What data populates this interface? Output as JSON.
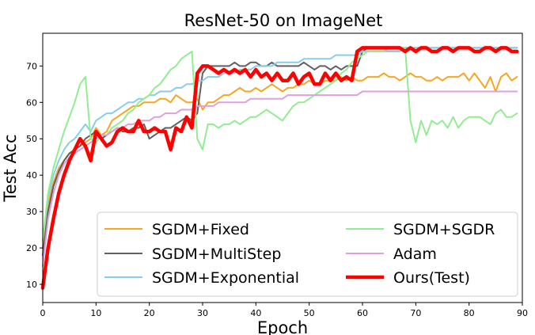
{
  "chart_data": {
    "type": "line",
    "title": "ResNet-50 on ImageNet",
    "xlabel": "Epoch",
    "ylabel": "Test Acc",
    "xlim": [
      0,
      90
    ],
    "ylim": [
      5,
      79
    ],
    "xticks": [
      0,
      10,
      20,
      30,
      40,
      50,
      60,
      70,
      80,
      90
    ],
    "yticks": [
      10,
      20,
      30,
      40,
      50,
      60,
      70
    ],
    "grid": false,
    "legend_position": "lower-right",
    "legend_columns": 2,
    "series": [
      {
        "name": "SGDM+Fixed",
        "color": "#f5a623",
        "line_width": 2,
        "x": [
          0,
          1,
          2,
          3,
          4,
          5,
          6,
          7,
          8,
          9,
          10,
          11,
          12,
          13,
          14,
          15,
          16,
          17,
          18,
          19,
          20,
          21,
          22,
          23,
          24,
          25,
          26,
          27,
          28,
          29,
          30,
          31,
          32,
          33,
          34,
          35,
          36,
          37,
          38,
          39,
          40,
          41,
          42,
          43,
          44,
          45,
          46,
          47,
          48,
          49,
          50,
          51,
          52,
          53,
          54,
          55,
          56,
          57,
          58,
          59,
          60,
          61,
          62,
          63,
          64,
          65,
          66,
          67,
          68,
          69,
          70,
          71,
          72,
          73,
          74,
          75,
          76,
          77,
          78,
          79,
          80,
          81,
          82,
          83,
          84,
          85,
          86,
          87,
          88,
          89
        ],
        "values": [
          20,
          32,
          38,
          42,
          44,
          46,
          47,
          48,
          49,
          50,
          53,
          51,
          52,
          55,
          56,
          57,
          58,
          59,
          59,
          60,
          60,
          60,
          61,
          61,
          60,
          62,
          61,
          60,
          60,
          61,
          58,
          60,
          60,
          61,
          62,
          62,
          63,
          64,
          63,
          63,
          64,
          63,
          64,
          65,
          64,
          63,
          64,
          64,
          65,
          65,
          66,
          65,
          65,
          66,
          66,
          66,
          67,
          66,
          67,
          66,
          66,
          67,
          67,
          67,
          68,
          67,
          67,
          66,
          67,
          68,
          67,
          67,
          66,
          66,
          67,
          66,
          67,
          67,
          67,
          68,
          66,
          68,
          66,
          64,
          67,
          63,
          67,
          68,
          66,
          67
        ]
      },
      {
        "name": "SGDM+MultiStep",
        "color": "#606060",
        "line_width": 2,
        "x": [
          0,
          1,
          2,
          3,
          4,
          5,
          6,
          7,
          8,
          9,
          10,
          11,
          12,
          13,
          14,
          15,
          16,
          17,
          18,
          19,
          20,
          21,
          22,
          23,
          24,
          25,
          26,
          27,
          28,
          29,
          30,
          31,
          32,
          33,
          34,
          35,
          36,
          37,
          38,
          39,
          40,
          41,
          42,
          43,
          44,
          45,
          46,
          47,
          48,
          49,
          50,
          51,
          52,
          53,
          54,
          55,
          56,
          57,
          58,
          59,
          60,
          61,
          62,
          63,
          64,
          65,
          66,
          67,
          68,
          69,
          70,
          71,
          72,
          73,
          74,
          75,
          76,
          77,
          78,
          79,
          80,
          81,
          82,
          83,
          84,
          85,
          86,
          87,
          88,
          89
        ],
        "values": [
          18,
          30,
          37,
          41,
          44,
          46,
          47,
          48,
          50,
          51,
          52,
          50,
          51,
          52,
          53,
          52,
          52,
          53,
          53,
          54,
          50,
          51,
          52,
          53,
          53,
          54,
          55,
          56,
          55,
          57,
          68,
          70,
          70,
          70,
          70,
          70,
          71,
          70,
          70,
          71,
          71,
          70,
          70,
          71,
          70,
          70,
          70,
          70,
          70,
          71,
          70,
          69,
          70,
          70,
          69,
          70,
          69,
          70,
          70,
          70,
          74,
          75,
          75,
          75,
          75,
          75,
          75,
          75,
          75,
          75,
          75,
          75,
          75,
          75,
          75,
          75,
          75,
          75,
          75,
          75,
          75,
          75,
          75,
          75,
          75,
          75,
          75,
          75,
          75,
          75
        ]
      },
      {
        "name": "SGDM+Exponential",
        "color": "#87ceeb",
        "line_width": 2,
        "x": [
          0,
          1,
          2,
          3,
          4,
          5,
          6,
          7,
          8,
          9,
          10,
          11,
          12,
          13,
          14,
          15,
          16,
          17,
          18,
          19,
          20,
          21,
          22,
          23,
          24,
          25,
          26,
          27,
          28,
          29,
          30,
          31,
          32,
          33,
          34,
          35,
          36,
          37,
          38,
          39,
          40,
          41,
          42,
          43,
          44,
          45,
          46,
          47,
          48,
          49,
          50,
          51,
          52,
          53,
          54,
          55,
          56,
          57,
          58,
          59,
          60,
          61,
          62,
          63,
          64,
          65,
          66,
          67,
          68,
          69,
          70,
          71,
          72,
          73,
          74,
          75,
          76,
          77,
          78,
          79,
          80,
          81,
          82,
          83,
          84,
          85,
          86,
          87,
          88,
          89
        ],
        "values": [
          22,
          34,
          40,
          44,
          47,
          49,
          50,
          52,
          54,
          52,
          55,
          56,
          57,
          57,
          58,
          59,
          60,
          60,
          61,
          61,
          62,
          62,
          63,
          63,
          63,
          64,
          64,
          65,
          65,
          66,
          66,
          67,
          67,
          67,
          68,
          68,
          68,
          69,
          69,
          69,
          70,
          70,
          70,
          70,
          71,
          71,
          71,
          71,
          71,
          72,
          72,
          72,
          72,
          72,
          72,
          73,
          73,
          73,
          73,
          73,
          74,
          74,
          74,
          74,
          74,
          74,
          74,
          74,
          75,
          75,
          75,
          75,
          75,
          75,
          75,
          75,
          75,
          75,
          75,
          75,
          75,
          75,
          75,
          75,
          75,
          75,
          75,
          75,
          75,
          75
        ]
      },
      {
        "name": "SGDM+SGDR",
        "color": "#90ee90",
        "line_width": 2,
        "x": [
          0,
          1,
          2,
          3,
          4,
          5,
          6,
          7,
          8,
          9,
          10,
          11,
          12,
          13,
          14,
          15,
          16,
          17,
          18,
          19,
          20,
          21,
          22,
          23,
          24,
          25,
          26,
          27,
          28,
          29,
          30,
          31,
          32,
          33,
          34,
          35,
          36,
          37,
          38,
          39,
          40,
          41,
          42,
          43,
          44,
          45,
          46,
          47,
          48,
          49,
          50,
          51,
          52,
          53,
          54,
          55,
          56,
          57,
          58,
          59,
          60,
          61,
          62,
          63,
          64,
          65,
          66,
          67,
          68,
          69,
          70,
          71,
          72,
          73,
          74,
          75,
          76,
          77,
          78,
          79,
          80,
          81,
          82,
          83,
          84,
          85,
          86,
          87,
          88,
          89
        ],
        "values": [
          22,
          35,
          42,
          47,
          52,
          56,
          60,
          65,
          67,
          50,
          49,
          51,
          51,
          53,
          54,
          55,
          57,
          58,
          60,
          61,
          62,
          64,
          65,
          67,
          69,
          70,
          72,
          73,
          74,
          50,
          47,
          54,
          54,
          53,
          54,
          54,
          55,
          54,
          55,
          56,
          56,
          57,
          58,
          57,
          56,
          55,
          57,
          59,
          60,
          60,
          61,
          62,
          63,
          64,
          65,
          66,
          68,
          69,
          71,
          72,
          73,
          74,
          74,
          74,
          74,
          75,
          75,
          75,
          75,
          55,
          49,
          55,
          51,
          55,
          54,
          55,
          53,
          56,
          53,
          55,
          56,
          56,
          56,
          55,
          54,
          57,
          58,
          56,
          56,
          57
        ]
      },
      {
        "name": "Adam",
        "color": "#dda0dd",
        "line_width": 2,
        "x": [
          0,
          1,
          2,
          3,
          4,
          5,
          6,
          7,
          8,
          9,
          10,
          11,
          12,
          13,
          14,
          15,
          16,
          17,
          18,
          19,
          20,
          21,
          22,
          23,
          24,
          25,
          26,
          27,
          28,
          29,
          30,
          31,
          32,
          33,
          34,
          35,
          36,
          37,
          38,
          39,
          40,
          41,
          42,
          43,
          44,
          45,
          46,
          47,
          48,
          49,
          50,
          51,
          52,
          53,
          54,
          55,
          56,
          57,
          58,
          59,
          60,
          61,
          62,
          63,
          64,
          65,
          66,
          67,
          68,
          69,
          70,
          71,
          72,
          73,
          74,
          75,
          76,
          77,
          78,
          79,
          80,
          81,
          82,
          83,
          84,
          85,
          86,
          87,
          88,
          89
        ],
        "values": [
          15,
          28,
          35,
          40,
          43,
          45,
          46,
          47,
          48,
          49,
          50,
          51,
          51,
          52,
          53,
          53,
          54,
          54,
          55,
          55,
          55,
          56,
          56,
          57,
          57,
          57,
          58,
          58,
          58,
          59,
          59,
          59,
          59,
          60,
          60,
          60,
          60,
          60,
          60,
          61,
          61,
          61,
          61,
          61,
          61,
          61,
          62,
          62,
          62,
          62,
          62,
          62,
          62,
          62,
          62,
          62,
          62,
          62,
          62,
          62,
          63,
          63,
          63,
          63,
          63,
          63,
          63,
          63,
          63,
          63,
          63,
          63,
          63,
          63,
          63,
          63,
          63,
          63,
          63,
          63,
          63,
          63,
          63,
          63,
          63,
          63,
          63,
          63,
          63,
          63
        ]
      },
      {
        "name": "Ours(Test)",
        "color": "#ff0000",
        "line_width": 4.5,
        "x": [
          0,
          1,
          2,
          3,
          4,
          5,
          6,
          7,
          8,
          9,
          10,
          11,
          12,
          13,
          14,
          15,
          16,
          17,
          18,
          19,
          20,
          21,
          22,
          23,
          24,
          25,
          26,
          27,
          28,
          29,
          30,
          31,
          32,
          33,
          34,
          35,
          36,
          37,
          38,
          39,
          40,
          41,
          42,
          43,
          44,
          45,
          46,
          47,
          48,
          49,
          50,
          51,
          52,
          53,
          54,
          55,
          56,
          57,
          58,
          59,
          60,
          61,
          62,
          63,
          64,
          65,
          66,
          67,
          68,
          69,
          70,
          71,
          72,
          73,
          74,
          75,
          76,
          77,
          78,
          79,
          80,
          81,
          82,
          83,
          84,
          85,
          86,
          87,
          88,
          89
        ],
        "values": [
          9,
          20,
          28,
          35,
          40,
          44,
          47,
          50,
          48,
          44,
          52,
          50,
          48,
          49,
          52,
          53,
          52,
          52,
          55,
          52,
          52,
          53,
          52,
          52,
          47,
          53,
          52,
          56,
          53,
          68,
          70,
          70,
          69,
          68,
          69,
          68,
          69,
          68,
          69,
          67,
          69,
          67,
          68,
          66,
          68,
          66,
          66,
          68,
          65,
          67,
          68,
          65,
          65,
          68,
          66,
          68,
          66,
          67,
          66,
          74,
          75,
          75,
          75,
          75,
          75,
          75,
          75,
          75,
          74,
          75,
          74,
          75,
          75,
          74,
          74,
          75,
          75,
          74,
          75,
          75,
          75,
          74,
          74,
          75,
          75,
          74,
          75,
          75,
          74,
          74
        ]
      }
    ]
  }
}
